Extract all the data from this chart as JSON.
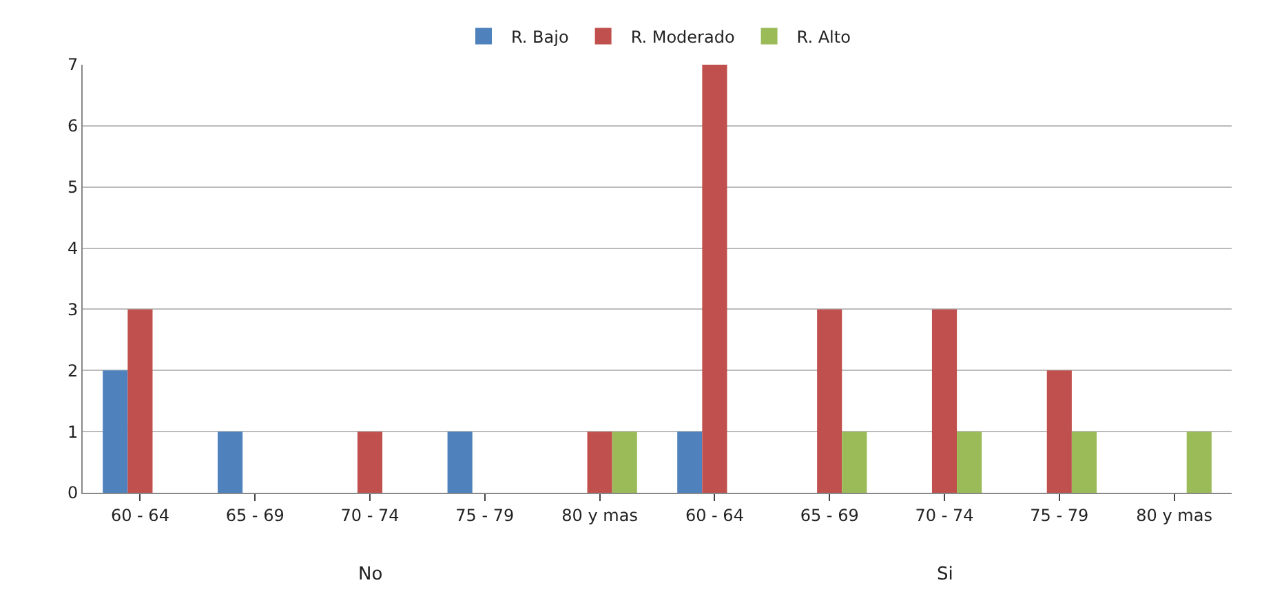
{
  "chart_data": {
    "type": "bar",
    "categories": [
      "60 - 64",
      "65 - 69",
      "70 - 74",
      "75 - 79",
      "80 y mas",
      "60 - 64",
      "65 - 69",
      "70 - 74",
      "75 - 79",
      "80 y mas"
    ],
    "series": [
      {
        "name": "R. Bajo",
        "color": "#4f81bd",
        "values": [
          2,
          1,
          0,
          1,
          0,
          1,
          0,
          0,
          0,
          0
        ]
      },
      {
        "name": "R. Moderado",
        "color": "#c0504d",
        "values": [
          3,
          0,
          1,
          0,
          1,
          7,
          3,
          3,
          2,
          0
        ]
      },
      {
        "name": "R. Alto",
        "color": "#9bbb59",
        "values": [
          0,
          0,
          0,
          0,
          1,
          0,
          1,
          1,
          1,
          1
        ]
      }
    ],
    "annotations": [
      "No",
      "Si"
    ],
    "ylim": [
      0,
      7
    ],
    "yticks": [
      0,
      1,
      2,
      3,
      4,
      5,
      6,
      7
    ],
    "grid": "y",
    "legend": "top"
  }
}
